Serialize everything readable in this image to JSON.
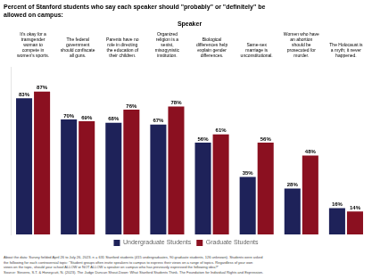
{
  "chart_data": {
    "type": "bar",
    "title": "Percent of Stanford students who say each speaker should \"probably\" or \"definitely\" be\nallowed on campus:",
    "xlabel": "Speaker",
    "categories": [
      "It’s okay for a\ntransgender\nwoman to\ncompete in\nwomen’s sports.",
      "The federal\ngovernment\nshould confiscate\nall guns.",
      "Parents have no\nrole in directing\nthe education of\ntheir children.",
      "Organized\nreligion is a\nsexist,\nmisogynistic\ninstitution.",
      "Biological\ndifferences help\nexplain gender\ndifferences.",
      "Same-sex\nmarriage is\nunconstitutional.",
      "Women who have\nan abortion\nshould be\nprosecuted for\nmurder.",
      "The Holocaust is\na myth; it never\nhappened."
    ],
    "series": [
      {
        "name": "Undergraduate Students",
        "color": "#1e2259",
        "values": [
          83,
          70,
          68,
          67,
          56,
          35,
          28,
          16
        ],
        "value_labels": [
          "83%",
          "70%",
          "68%",
          "67%",
          "56%",
          "35%",
          "28%",
          "16%"
        ]
      },
      {
        "name": "Graduate Students",
        "color": "#8b1020",
        "values": [
          87,
          69,
          76,
          78,
          61,
          56,
          48,
          14
        ],
        "value_labels": [
          "87%",
          "69%",
          "76%",
          "78%",
          "61%",
          "56%",
          "48%",
          "14%"
        ]
      }
    ],
    "ylim": [
      0,
      102
    ],
    "yticks": [],
    "grid": false,
    "legend": "bottom",
    "data_labels": true,
    "tick_labels": "x",
    "annotations": [
      "About the data: Survey fielded April 26 to July 26, 2023. n = 631 Stanford students (415 undergraduates, 90 graduate students, 126 unknown). Students were asked\nthe following for each controversial topic: \"Student groups often invite speakers to campus to express their views on a range of topics. Regardless of your own\nviews on the topic, should your school ALLOW or NOT ALLOW a speaker on campus who has previously expressed the following idea?\"\nSource: Stevens, S.T. & Honeycutt, N. (2023). The Judge Duncan Shout-Down: What Stanford Students Think. The Foundation for Individual Rights and Expression."
    ]
  }
}
